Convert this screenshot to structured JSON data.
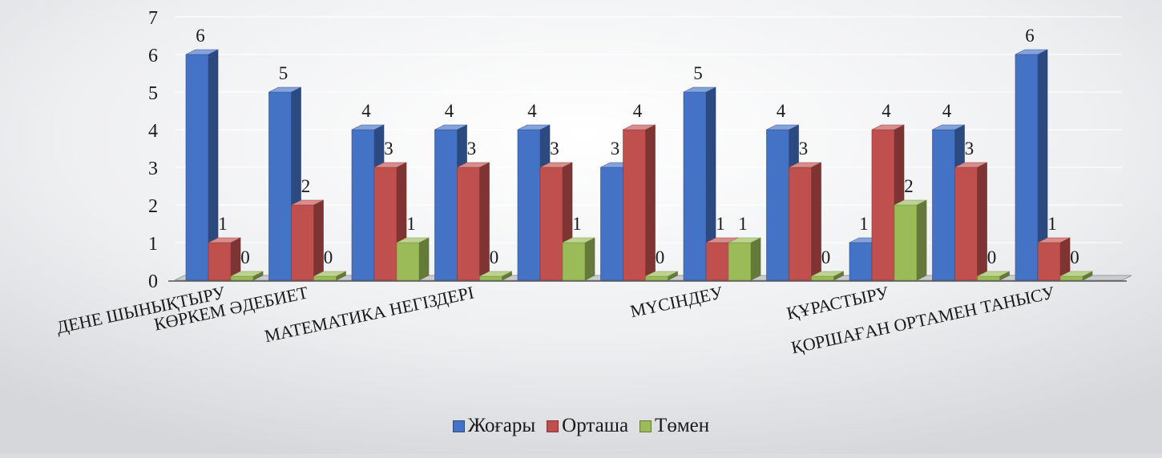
{
  "chart_data": {
    "type": "bar",
    "categories": [
      "ДЕНЕ ШЫНЫҚТЫРУ",
      "КӨРКЕМ ӘДЕБИЕТ",
      "",
      "МАТЕМАТИКА НЕГІЗДЕРІ",
      "",
      "",
      "МҮСІНДЕУ",
      "",
      "ҚҰРАСТЫРУ",
      "",
      "ҚОРШАҒАН ОРТАМЕН ТАНЫСУ"
    ],
    "series": [
      {
        "name": "Жоғары",
        "color": "#4472c4",
        "values": [
          6,
          5,
          4,
          4,
          4,
          3,
          5,
          4,
          1,
          4,
          6
        ]
      },
      {
        "name": "Орташа",
        "color": "#c0504d",
        "values": [
          1,
          2,
          3,
          3,
          3,
          4,
          1,
          3,
          4,
          3,
          1
        ]
      },
      {
        "name": "Төмен",
        "color": "#9bbb59",
        "values": [
          0,
          0,
          1,
          0,
          1,
          0,
          1,
          0,
          2,
          0,
          0
        ]
      }
    ],
    "y_ticks": [
      0,
      1,
      2,
      3,
      4,
      5,
      6,
      7
    ],
    "ylim": [
      0,
      7
    ],
    "grid": true,
    "legend_position": "bottom"
  }
}
